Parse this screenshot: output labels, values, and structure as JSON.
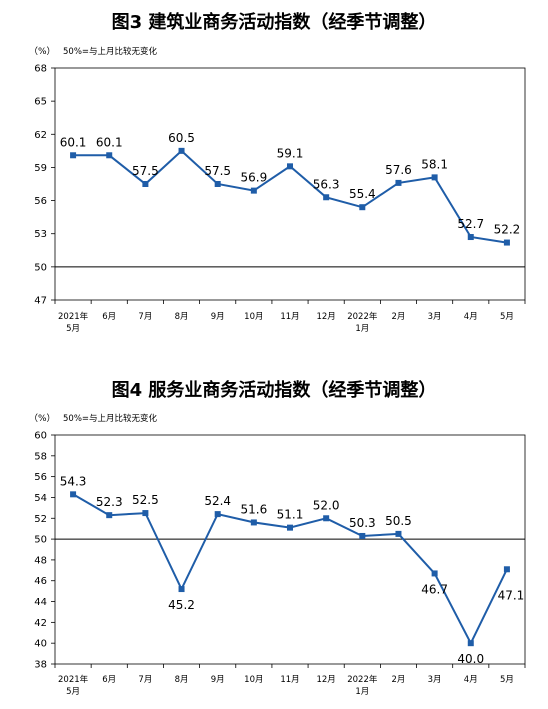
{
  "chart_data": [
    {
      "type": "line",
      "title": "图3  建筑业商务活动指数（经季节调整）",
      "unit": "（%）",
      "note": "50%=与上月比较无变化",
      "categories": [
        [
          "2021年",
          "5月"
        ],
        [
          "6月"
        ],
        [
          "7月"
        ],
        [
          "8月"
        ],
        [
          "9月"
        ],
        [
          "10月"
        ],
        [
          "11月"
        ],
        [
          "12月"
        ],
        [
          "2022年",
          "1月"
        ],
        [
          "2月"
        ],
        [
          "3月"
        ],
        [
          "4月"
        ],
        [
          "5月"
        ]
      ],
      "series": [
        {
          "values": [
            60.1,
            60.1,
            57.5,
            60.5,
            57.5,
            56.9,
            59.1,
            56.3,
            55.4,
            57.6,
            58.1,
            52.7,
            52.2
          ]
        }
      ],
      "data_labels": [
        "60.1",
        "60.1",
        "57.5",
        "60.5",
        "57.5",
        "56.9",
        "59.1",
        "56.3",
        "55.4",
        "57.6",
        "58.1",
        "52.7",
        "52.2"
      ],
      "label_side": [
        "above",
        "above",
        "above",
        "above",
        "above",
        "above",
        "above",
        "above",
        "above",
        "above",
        "above",
        "above",
        "above"
      ],
      "ylim": [
        47,
        68
      ],
      "yticks": [
        47,
        50,
        53,
        56,
        59,
        62,
        65,
        68
      ],
      "ytick_labels": [
        "47",
        "50",
        "53",
        "56",
        "59",
        "62",
        "65",
        "68"
      ],
      "reference_line": 50,
      "grid": false,
      "color": "#1F5DA8"
    },
    {
      "type": "line",
      "title": "图4  服务业商务活动指数（经季节调整）",
      "unit": "（%）",
      "note": "50%=与上月比较无变化",
      "categories": [
        [
          "2021年",
          "5月"
        ],
        [
          "6月"
        ],
        [
          "7月"
        ],
        [
          "8月"
        ],
        [
          "9月"
        ],
        [
          "10月"
        ],
        [
          "11月"
        ],
        [
          "12月"
        ],
        [
          "2022年",
          "1月"
        ],
        [
          "2月"
        ],
        [
          "3月"
        ],
        [
          "4月"
        ],
        [
          "5月"
        ]
      ],
      "series": [
        {
          "values": [
            54.3,
            52.3,
            52.5,
            45.2,
            52.4,
            51.6,
            51.1,
            52.0,
            50.3,
            50.5,
            46.7,
            40.0,
            47.1
          ]
        }
      ],
      "data_labels": [
        "54.3",
        "52.3",
        "52.5",
        "45.2",
        "52.4",
        "51.6",
        "51.1",
        "52.0",
        "50.3",
        "50.5",
        "46.7",
        "40.0",
        "47.1"
      ],
      "label_side": [
        "above",
        "above",
        "above",
        "below",
        "above",
        "above",
        "above",
        "above",
        "above",
        "above",
        "below",
        "below",
        "right-below"
      ],
      "ylim": [
        38,
        60
      ],
      "yticks": [
        38,
        40,
        42,
        44,
        46,
        48,
        50,
        52,
        54,
        56,
        58,
        60
      ],
      "ytick_labels": [
        "38",
        "40",
        "42",
        "44",
        "46",
        "48",
        "50",
        "52",
        "54",
        "56",
        "58",
        "60"
      ],
      "reference_line": 50,
      "grid": false,
      "color": "#1F5DA8"
    }
  ]
}
